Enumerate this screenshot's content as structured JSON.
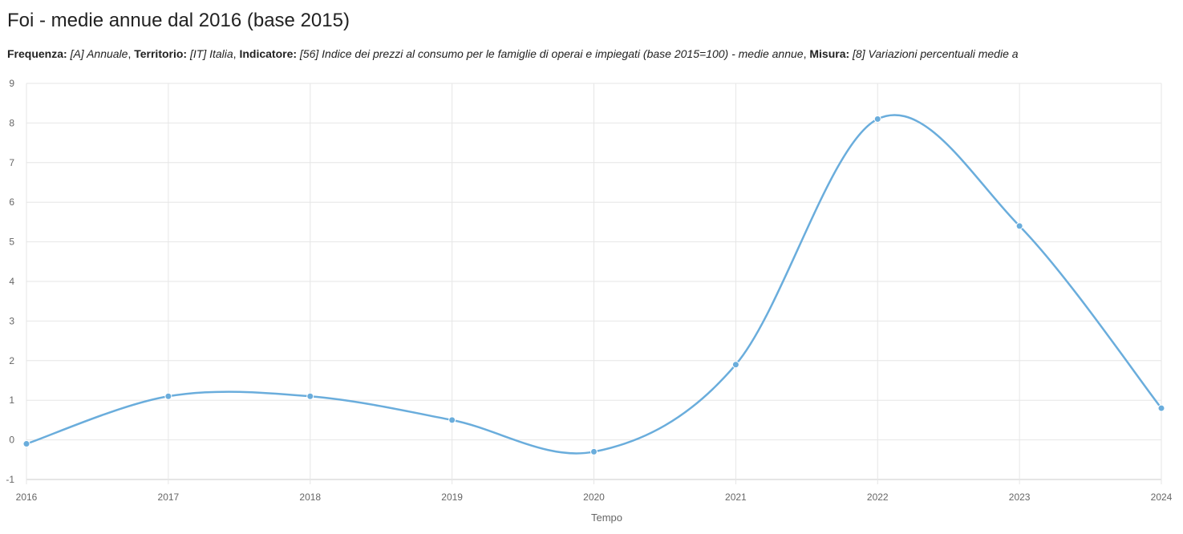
{
  "title": "Foi - medie annue dal 2016 (base 2015)",
  "subtitle": {
    "freq_label": "Frequenza:",
    "freq_value": "[A] Annuale",
    "terr_label": "Territorio:",
    "terr_value": "[IT] Italia",
    "ind_label": "Indicatore:",
    "ind_value": "[56] Indice dei prezzi al consumo per le famiglie di operai e impiegati (base 2015=100) - medie annue",
    "mis_label": "Misura:",
    "mis_value": "[8] Variazioni percentuali medie a"
  },
  "colors": {
    "series": "#6aaddc",
    "grid": "#e6e6e6",
    "axis": "#cccccc"
  },
  "chart_data": {
    "type": "line",
    "x": [
      "2016",
      "2017",
      "2018",
      "2019",
      "2020",
      "2021",
      "2022",
      "2023",
      "2024"
    ],
    "series": [
      {
        "values": [
          -0.1,
          1.1,
          1.1,
          0.5,
          -0.3,
          1.9,
          8.1,
          5.4,
          0.8
        ]
      }
    ],
    "xlabel": "Tempo",
    "ylabel": "",
    "ylim": [
      -1,
      9
    ],
    "yticks": [
      "-1",
      "0",
      "1",
      "2",
      "3",
      "4",
      "5",
      "6",
      "7",
      "8",
      "9"
    ],
    "grid": true,
    "smooth": true,
    "markers": true
  }
}
